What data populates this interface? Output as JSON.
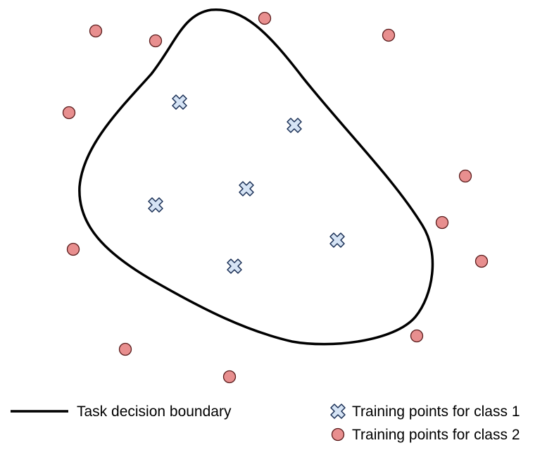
{
  "colors": {
    "boundary": "#000000",
    "class1_fill": "#d6e4f5",
    "class1_stroke": "#1a2f55",
    "class2_fill": "#e88f8f",
    "class2_stroke": "#5a1c1c",
    "background": "#ffffff"
  },
  "legend": {
    "boundary_label": "Task decision boundary",
    "class1_label": "Training points for class 1",
    "class2_label": "Training points for class 2"
  },
  "icons": {
    "class1_marker": "x-cross-icon",
    "class2_marker": "circle-icon"
  }
}
